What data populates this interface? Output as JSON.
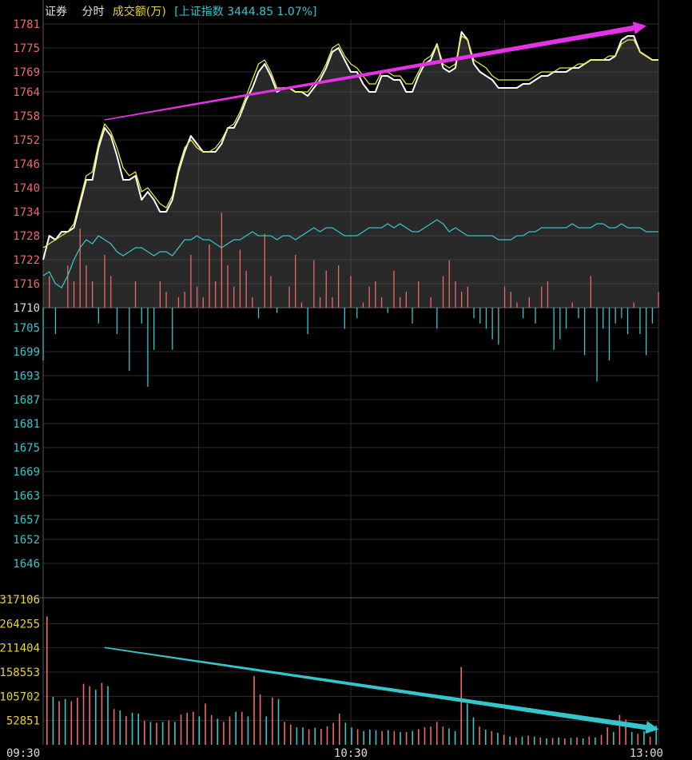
{
  "header": {
    "name": "证券",
    "mode": "分时",
    "volume_label": "成交额(万)",
    "index_label": "[上证指数 3444.85 1.07%]"
  },
  "chart_data": {
    "type": "line",
    "price_panel": {
      "y_ticks_red": [
        "1781",
        "1775",
        "1769",
        "1764",
        "1758",
        "1752",
        "1746",
        "1740",
        "1734",
        "1728",
        "1722",
        "1716"
      ],
      "y_tick_mid": "1710",
      "y_ticks_green": [
        "1705",
        "1699",
        "1693",
        "1687",
        "1681",
        "1675",
        "1669",
        "1663",
        "1657",
        "1652",
        "1646"
      ],
      "ylim": [
        1643,
        1782
      ],
      "x_ticks": [
        "09:30",
        "10:30",
        "13:00"
      ],
      "series": [
        {
          "name": "price",
          "color": "#ffffff",
          "values": [
            1722,
            1728,
            1727,
            1729,
            1729,
            1730,
            1736,
            1742,
            1742,
            1750,
            1755,
            1753,
            1748,
            1742,
            1742,
            1743,
            1737,
            1739,
            1737,
            1734,
            1734,
            1737,
            1744,
            1749,
            1753,
            1751,
            1749,
            1749,
            1749,
            1751,
            1755,
            1755,
            1758,
            1762,
            1765,
            1769,
            1771,
            1768,
            1764,
            1765,
            1765,
            1764,
            1764,
            1763,
            1765,
            1767,
            1770,
            1774,
            1775,
            1772,
            1769,
            1769,
            1766,
            1764,
            1764,
            1768,
            1768,
            1767,
            1767,
            1764,
            1764,
            1768,
            1771,
            1772,
            1776,
            1770,
            1769,
            1770,
            1779,
            1777,
            1771,
            1769,
            1768,
            1767,
            1765,
            1765,
            1765,
            1765,
            1766,
            1766,
            1767,
            1768,
            1768,
            1769,
            1769,
            1769,
            1770,
            1770,
            1771,
            1772,
            1772,
            1772,
            1772,
            1773,
            1777,
            1778,
            1778,
            1774,
            1773,
            1772,
            1772
          ]
        },
        {
          "name": "avg",
          "color": "#e8e83a",
          "values": [
            1725,
            1726,
            1727,
            1728,
            1729,
            1731,
            1737,
            1743,
            1744,
            1751,
            1756,
            1754,
            1750,
            1745,
            1743,
            1744,
            1739,
            1740,
            1738,
            1736,
            1735,
            1738,
            1745,
            1750,
            1752,
            1750,
            1749,
            1749,
            1750,
            1752,
            1755,
            1756,
            1759,
            1763,
            1767,
            1771,
            1772,
            1769,
            1765,
            1765,
            1765,
            1764,
            1764,
            1764,
            1766,
            1768,
            1771,
            1775,
            1776,
            1773,
            1771,
            1770,
            1768,
            1766,
            1766,
            1769,
            1769,
            1768,
            1768,
            1766,
            1766,
            1769,
            1772,
            1773,
            1776,
            1771,
            1770,
            1771,
            1778,
            1777,
            1772,
            1771,
            1770,
            1768,
            1767,
            1767,
            1767,
            1767,
            1767,
            1767,
            1768,
            1769,
            1769,
            1769,
            1770,
            1770,
            1770,
            1771,
            1771,
            1772,
            1772,
            1772,
            1773,
            1773,
            1776,
            1777,
            1777,
            1774,
            1773,
            1772,
            1772
          ]
        },
        {
          "name": "index",
          "color": "#35c6cc",
          "values": [
            1718,
            1719,
            1716,
            1715,
            1718,
            1722,
            1725,
            1727,
            1726,
            1728,
            1727,
            1726,
            1724,
            1723,
            1724,
            1725,
            1725,
            1724,
            1723,
            1724,
            1724,
            1723,
            1725,
            1727,
            1727,
            1728,
            1727,
            1727,
            1726,
            1725,
            1726,
            1727,
            1727,
            1728,
            1729,
            1728,
            1728,
            1728,
            1727,
            1728,
            1728,
            1727,
            1728,
            1729,
            1730,
            1729,
            1730,
            1730,
            1729,
            1728,
            1728,
            1728,
            1729,
            1730,
            1730,
            1730,
            1731,
            1730,
            1731,
            1730,
            1729,
            1729,
            1730,
            1731,
            1732,
            1731,
            1729,
            1730,
            1729,
            1728,
            1728,
            1728,
            1728,
            1728,
            1727,
            1727,
            1727,
            1728,
            1728,
            1729,
            1729,
            1730,
            1730,
            1730,
            1730,
            1730,
            1731,
            1730,
            1730,
            1730,
            1731,
            1731,
            1730,
            1730,
            1731,
            1730,
            1730,
            1730,
            1729,
            1729,
            1729
          ]
        }
      ],
      "net_flow": [
        -10,
        6,
        -5,
        0,
        8,
        5,
        15,
        8,
        5,
        -3,
        10,
        6,
        -5,
        0,
        -12,
        5,
        -3,
        -15,
        -8,
        5,
        3,
        -8,
        2,
        3,
        10,
        4,
        2,
        12,
        5,
        18,
        8,
        4,
        11,
        7,
        2,
        -2,
        14,
        6,
        -1,
        0,
        4,
        10,
        1,
        -5,
        9,
        2,
        7,
        2,
        8,
        -4,
        6,
        -2,
        1,
        4,
        5,
        2,
        -1,
        7,
        2,
        3,
        -3,
        5,
        0,
        2,
        -4,
        6,
        9,
        5,
        3,
        4,
        -2,
        -3,
        -4,
        -6,
        -7,
        4,
        3,
        1,
        -2,
        2,
        -3,
        4,
        5,
        -8,
        -6,
        -4,
        1,
        -2,
        -9,
        6,
        -14,
        -4,
        -10,
        -3,
        -2,
        -5,
        1,
        -5,
        -9,
        -3,
        3
      ]
    },
    "volume_panel": {
      "y_ticks": [
        "317106",
        "264255",
        "211404",
        "158553",
        "105702",
        "52851"
      ],
      "ylim": [
        0,
        317106
      ],
      "bars": [
        {
          "v": 280000,
          "up": true
        },
        {
          "v": 105000,
          "up": false
        },
        {
          "v": 95000,
          "up": true
        },
        {
          "v": 100000,
          "up": false
        },
        {
          "v": 95000,
          "up": true
        },
        {
          "v": 103000,
          "up": true
        },
        {
          "v": 133000,
          "up": true
        },
        {
          "v": 128000,
          "up": true
        },
        {
          "v": 120000,
          "up": false
        },
        {
          "v": 135000,
          "up": true
        },
        {
          "v": 128000,
          "up": false
        },
        {
          "v": 78000,
          "up": true
        },
        {
          "v": 75000,
          "up": false
        },
        {
          "v": 63000,
          "up": true
        },
        {
          "v": 70000,
          "up": false
        },
        {
          "v": 68000,
          "up": false
        },
        {
          "v": 52000,
          "up": true
        },
        {
          "v": 50000,
          "up": false
        },
        {
          "v": 48000,
          "up": true
        },
        {
          "v": 50000,
          "up": false
        },
        {
          "v": 53000,
          "up": true
        },
        {
          "v": 50000,
          "up": false
        },
        {
          "v": 66000,
          "up": true
        },
        {
          "v": 70000,
          "up": true
        },
        {
          "v": 72000,
          "up": true
        },
        {
          "v": 62000,
          "up": false
        },
        {
          "v": 90000,
          "up": true
        },
        {
          "v": 65000,
          "up": true
        },
        {
          "v": 57000,
          "up": false
        },
        {
          "v": 50000,
          "up": true
        },
        {
          "v": 62000,
          "up": true
        },
        {
          "v": 72000,
          "up": false
        },
        {
          "v": 72000,
          "up": true
        },
        {
          "v": 62000,
          "up": false
        },
        {
          "v": 150000,
          "up": true
        },
        {
          "v": 110000,
          "up": true
        },
        {
          "v": 62000,
          "up": false
        },
        {
          "v": 103000,
          "up": true
        },
        {
          "v": 100000,
          "up": false
        },
        {
          "v": 50000,
          "up": true
        },
        {
          "v": 44000,
          "up": true
        },
        {
          "v": 38000,
          "up": false
        },
        {
          "v": 38000,
          "up": false
        },
        {
          "v": 34000,
          "up": true
        },
        {
          "v": 37000,
          "up": false
        },
        {
          "v": 35000,
          "up": true
        },
        {
          "v": 40000,
          "up": true
        },
        {
          "v": 48000,
          "up": true
        },
        {
          "v": 68000,
          "up": true
        },
        {
          "v": 48000,
          "up": false
        },
        {
          "v": 38000,
          "up": false
        },
        {
          "v": 34000,
          "up": true
        },
        {
          "v": 30000,
          "up": false
        },
        {
          "v": 33000,
          "up": false
        },
        {
          "v": 32000,
          "up": false
        },
        {
          "v": 30000,
          "up": true
        },
        {
          "v": 32000,
          "up": false
        },
        {
          "v": 30000,
          "up": true
        },
        {
          "v": 28000,
          "up": false
        },
        {
          "v": 28000,
          "up": true
        },
        {
          "v": 30000,
          "up": false
        },
        {
          "v": 34000,
          "up": true
        },
        {
          "v": 38000,
          "up": true
        },
        {
          "v": 40000,
          "up": true
        },
        {
          "v": 50000,
          "up": true
        },
        {
          "v": 40000,
          "up": true
        },
        {
          "v": 36000,
          "up": false
        },
        {
          "v": 30000,
          "up": false
        },
        {
          "v": 170000,
          "up": true
        },
        {
          "v": 90000,
          "up": false
        },
        {
          "v": 60000,
          "up": false
        },
        {
          "v": 40000,
          "up": true
        },
        {
          "v": 33000,
          "up": false
        },
        {
          "v": 30000,
          "up": true
        },
        {
          "v": 26000,
          "up": false
        },
        {
          "v": 22000,
          "up": true
        },
        {
          "v": 18000,
          "up": false
        },
        {
          "v": 16000,
          "up": true
        },
        {
          "v": 18000,
          "up": false
        },
        {
          "v": 20000,
          "up": true
        },
        {
          "v": 18000,
          "up": false
        },
        {
          "v": 16000,
          "up": true
        },
        {
          "v": 14000,
          "up": false
        },
        {
          "v": 15000,
          "up": true
        },
        {
          "v": 16000,
          "up": false
        },
        {
          "v": 14000,
          "up": true
        },
        {
          "v": 15000,
          "up": false
        },
        {
          "v": 16000,
          "up": true
        },
        {
          "v": 14000,
          "up": false
        },
        {
          "v": 18000,
          "up": true
        },
        {
          "v": 16000,
          "up": false
        },
        {
          "v": 22000,
          "up": true
        },
        {
          "v": 38000,
          "up": true
        },
        {
          "v": 28000,
          "up": false
        },
        {
          "v": 65000,
          "up": true
        },
        {
          "v": 55000,
          "up": true
        },
        {
          "v": 28000,
          "up": false
        },
        {
          "v": 24000,
          "up": true
        },
        {
          "v": 30000,
          "up": false
        },
        {
          "v": 18000,
          "up": true
        },
        {
          "v": 42000,
          "up": false
        }
      ]
    },
    "annotations": [
      {
        "name": "price-uptrend-arrow",
        "color": "#e632e6",
        "from": {
          "i": 10,
          "y": 1757
        },
        "to": {
          "i": 96,
          "y": 1780
        }
      },
      {
        "name": "volume-downtrend-arrow",
        "color": "#35c6cc",
        "from": {
          "i": 10,
          "v": 212000
        },
        "to": {
          "i": 98,
          "v": 38000
        }
      }
    ]
  }
}
